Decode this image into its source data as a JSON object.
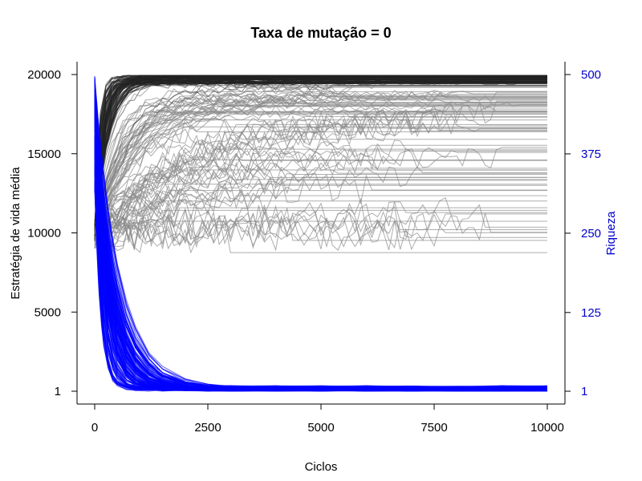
{
  "chart_data": {
    "type": "line",
    "title": "Taxa de mutação = 0",
    "xlabel": "Ciclos",
    "ylabel_left": "Estratégia de vida média",
    "ylabel_right": "Riqueza",
    "xlim": [
      0,
      10000
    ],
    "ylim_left": [
      1,
      20000
    ],
    "ylim_right": [
      1,
      500
    ],
    "x_ticks": [
      0,
      2500,
      5000,
      7500,
      10000
    ],
    "x_tick_labels": [
      "0",
      "2500",
      "5000",
      "7500",
      "10000"
    ],
    "y_left_ticks": [
      1,
      5000,
      10000,
      15000,
      20000
    ],
    "y_left_tick_labels": [
      "1",
      "5000",
      "10000",
      "15000",
      "20000"
    ],
    "y_right_ticks": [
      1,
      125,
      250,
      375,
      500
    ],
    "y_right_tick_labels": [
      "1",
      "125",
      "250",
      "375",
      "500"
    ],
    "grid": false,
    "legend": "none",
    "colors": {
      "strategy_series": "#8a8a8a",
      "strategy_converged": "#222222",
      "wealth_series": "#0000ff",
      "right_axis": "#0000cc"
    },
    "series_groups": [
      {
        "axis": "left",
        "color": "#8a8a8a",
        "description_count": 180,
        "representative": [
          {
            "x": [
              0,
              250,
              500,
              1000,
              2000,
              3000,
              5000,
              7500,
              10000
            ],
            "y": [
              9500,
              13000,
              15000,
              17500,
              18800,
              19200,
              19500,
              19600,
              19600
            ]
          },
          {
            "x": [
              0,
              250,
              500,
              1000,
              2000,
              3000,
              5000,
              7500,
              10000
            ],
            "y": [
              9500,
              9000,
              10500,
              11500,
              12500,
              13000,
              13000,
              12800,
              13100
            ]
          },
          {
            "x": [
              0,
              250,
              500,
              1000,
              2000,
              3000,
              5000,
              7500,
              8000,
              10000
            ],
            "y": [
              9500,
              8500,
              9000,
              10000,
              11000,
              10500,
              11000,
              9500,
              8800,
              8800
            ]
          },
          {
            "x": [
              0,
              250,
              500,
              1000,
              2000,
              3000,
              5000,
              7500,
              10000
            ],
            "y": [
              9500,
              11000,
              13500,
              14500,
              15500,
              16000,
              16500,
              16300,
              16300
            ]
          }
        ]
      },
      {
        "axis": "right",
        "color": "#0000ff",
        "description_count": 180,
        "representative": [
          {
            "x": [
              0,
              50,
              100,
              250,
              500,
              1000,
              2000,
              3000,
              5000,
              10000
            ],
            "y": [
              500,
              420,
              260,
              110,
              55,
              30,
              18,
              12,
              8,
              5
            ]
          },
          {
            "x": [
              0,
              50,
              100,
              250,
              500,
              1000,
              2000,
              3000,
              5000,
              10000
            ],
            "y": [
              480,
              300,
              150,
              60,
              30,
              15,
              8,
              5,
              3,
              2
            ]
          }
        ]
      }
    ]
  }
}
